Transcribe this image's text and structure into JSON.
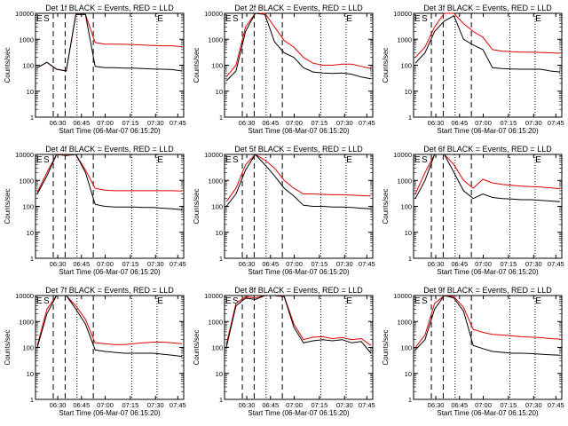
{
  "y_axis_label": "Counts/sec",
  "x_axis_label": "Start Time (06-Mar-07 06:15:20)",
  "x_tick_labels": [
    "06:30",
    "06:45",
    "07:00",
    "07:15",
    "07:30",
    "07:45"
  ],
  "y_tick_labels": [
    "1",
    "10",
    "100",
    "1000",
    "10000"
  ],
  "marker_labels": [
    "E",
    "S"
  ],
  "colors": {
    "events": "#000000",
    "lld": "#e00000",
    "axes": "#000000"
  },
  "chart_data": [
    {
      "type": "line",
      "title": "Det 1f BLACK = Events, RED = LLD",
      "yscale": "log",
      "ylim": [
        1,
        10000
      ],
      "series": [
        {
          "name": "BLACK = Events",
          "values": [
            80,
            130,
            70,
            60,
            9000,
            9000,
            90,
            80,
            80,
            78,
            78,
            75,
            72,
            70,
            68,
            60
          ]
        },
        {
          "name": "RED = LLD",
          "values": [
            80,
            130,
            70,
            60,
            9000,
            9000,
            750,
            650,
            650,
            640,
            620,
            600,
            580,
            560,
            560,
            520
          ]
        }
      ]
    },
    {
      "type": "line",
      "title": "Det 2f BLACK = Events, RED = LLD",
      "yscale": "log",
      "ylim": [
        1,
        10000
      ],
      "series": [
        {
          "name": "BLACK = Events",
          "values": [
            25,
            60,
            2000,
            10000,
            9000,
            800,
            300,
            200,
            80,
            55,
            50,
            48,
            50,
            45,
            35,
            30
          ]
        },
        {
          "name": "RED = LLD",
          "values": [
            35,
            100,
            3000,
            10000,
            10000,
            3000,
            900,
            500,
            200,
            120,
            100,
            100,
            110,
            110,
            90,
            75
          ]
        }
      ]
    },
    {
      "type": "line",
      "title": "Det 3f BLACK = Events, RED = LLD",
      "yscale": "log",
      "ylim": [
        1,
        10000
      ],
      "series": [
        {
          "name": "BLACK = Events",
          "values": [
            120,
            300,
            2000,
            5000,
            8000,
            1000,
            600,
            400,
            80,
            75,
            72,
            70,
            70,
            70,
            60,
            55
          ]
        },
        {
          "name": "RED = LLD",
          "values": [
            200,
            500,
            3000,
            10000,
            10000,
            4000,
            2000,
            1200,
            400,
            350,
            330,
            320,
            320,
            310,
            300,
            290
          ]
        }
      ]
    },
    {
      "type": "line",
      "title": "Det 4f BLACK = Events, RED = LLD",
      "yscale": "log",
      "ylim": [
        1,
        10000
      ],
      "series": [
        {
          "name": "BLACK = Events",
          "values": [
            300,
            1500,
            10000,
            9000,
            10000,
            2000,
            120,
            100,
            95,
            95,
            95,
            90,
            90,
            85,
            80,
            75
          ]
        },
        {
          "name": "RED = LLD",
          "values": [
            350,
            2000,
            10000,
            9500,
            10000,
            2500,
            500,
            420,
            400,
            400,
            400,
            400,
            400,
            400,
            400,
            390
          ]
        }
      ]
    },
    {
      "type": "line",
      "title": "Det 5f BLACK = Events, RED = LLD",
      "yscale": "log",
      "ylim": [
        1,
        10000
      ],
      "series": [
        {
          "name": "BLACK = Events",
          "values": [
            100,
            300,
            2500,
            10000,
            4000,
            1500,
            500,
            250,
            110,
            100,
            100,
            95,
            95,
            90,
            85,
            80
          ]
        },
        {
          "name": "RED = LLD",
          "values": [
            150,
            500,
            4000,
            10000,
            6000,
            3000,
            1000,
            500,
            300,
            300,
            290,
            280,
            280,
            270,
            260,
            250
          ]
        }
      ]
    },
    {
      "type": "line",
      "title": "Det 6f BLACK = Events, RED = LLD",
      "yscale": "log",
      "ylim": [
        1,
        10000
      ],
      "series": [
        {
          "name": "BLACK = Events",
          "values": [
            200,
            1000,
            10000,
            10000,
            2000,
            400,
            200,
            300,
            220,
            200,
            190,
            180,
            180,
            170,
            160,
            150
          ]
        },
        {
          "name": "RED = LLD",
          "values": [
            300,
            2000,
            10000,
            10000,
            4000,
            1000,
            500,
            1100,
            800,
            700,
            650,
            600,
            580,
            550,
            520,
            480
          ]
        }
      ]
    },
    {
      "type": "line",
      "title": "Det 7f BLACK = Events, RED = LLD",
      "yscale": "log",
      "ylim": [
        1,
        10000
      ],
      "series": [
        {
          "name": "BLACK = Events",
          "values": [
            100,
            2000,
            10000,
            10000,
            3000,
            800,
            80,
            70,
            65,
            60,
            60,
            60,
            60,
            55,
            50,
            45
          ]
        },
        {
          "name": "RED = LLD",
          "values": [
            120,
            3000,
            10000,
            10000,
            4000,
            1200,
            150,
            140,
            130,
            130,
            140,
            150,
            160,
            160,
            150,
            140
          ]
        }
      ]
    },
    {
      "type": "line",
      "title": "Det 8f BLACK = Events, RED = LLD",
      "yscale": "log",
      "ylim": [
        1,
        10000
      ],
      "series": [
        {
          "name": "BLACK = Events",
          "values": [
            100,
            4000,
            8000,
            7000,
            10000,
            10000,
            9000,
            600,
            150,
            180,
            200,
            180,
            200,
            150,
            170,
            60
          ]
        },
        {
          "name": "RED = LLD",
          "values": [
            130,
            5000,
            9000,
            8000,
            10000,
            10000,
            9500,
            800,
            200,
            250,
            260,
            220,
            240,
            200,
            220,
            120
          ]
        }
      ]
    },
    {
      "type": "line",
      "title": "Det 9f BLACK = Events, RED = LLD",
      "yscale": "log",
      "ylim": [
        1,
        10000
      ],
      "series": [
        {
          "name": "BLACK = Events",
          "values": [
            80,
            200,
            3000,
            10000,
            8000,
            2500,
            120,
            90,
            70,
            65,
            60,
            60,
            58,
            55,
            52,
            50
          ]
        },
        {
          "name": "RED = LLD",
          "values": [
            100,
            300,
            5000,
            10000,
            9000,
            3500,
            500,
            380,
            320,
            300,
            280,
            260,
            250,
            240,
            220,
            210
          ]
        }
      ]
    }
  ]
}
